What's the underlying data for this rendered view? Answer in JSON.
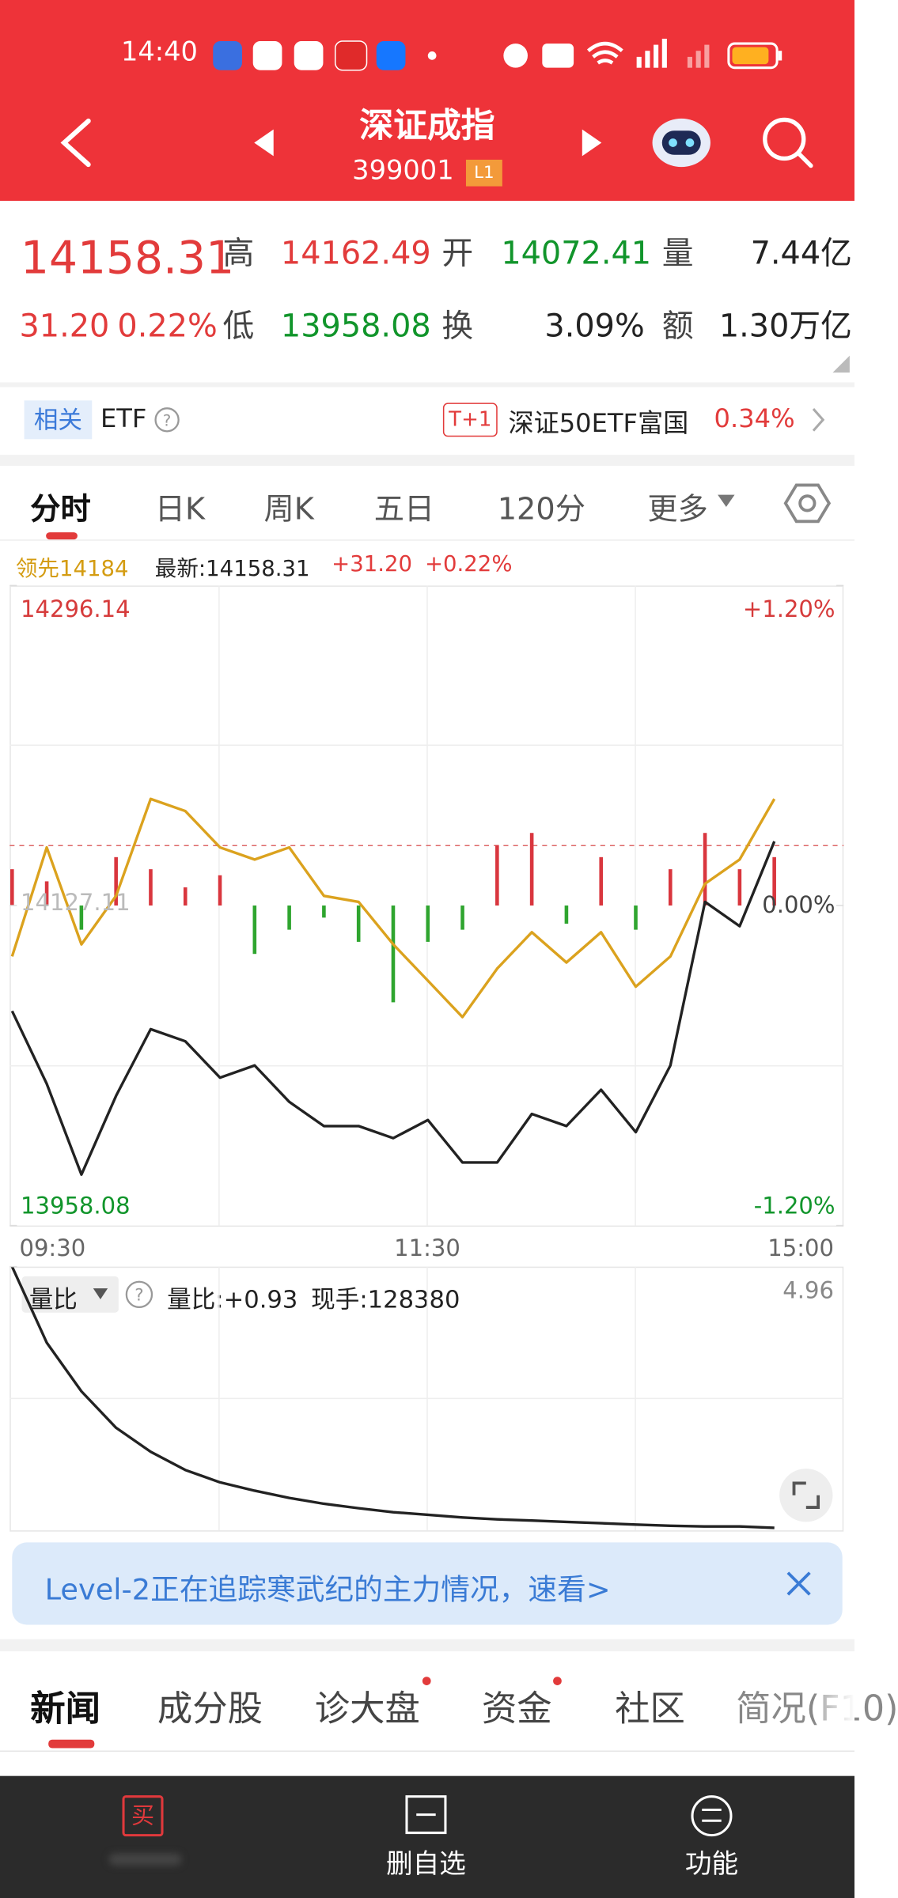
{
  "status_bar": {
    "time": "14:40"
  },
  "header": {
    "title": "深证成指",
    "code": "399001",
    "level": "L1"
  },
  "quote": {
    "price": "14158.31",
    "change": "31.20",
    "change_pct": "0.22%",
    "high_label": "高",
    "high": "14162.49",
    "open_label": "开",
    "open": "14072.41",
    "volume_label": "量",
    "volume": "7.44亿",
    "low_label": "低",
    "low": "13958.08",
    "turnover_label": "换",
    "turnover": "3.09%",
    "amount_label": "额",
    "amount": "1.30万亿"
  },
  "etf": {
    "tag": "相关",
    "label": "ETF",
    "badge": "T+1",
    "name": "深证50ETF富国",
    "change": "0.34%"
  },
  "tabs": [
    "分时",
    "日K",
    "周K",
    "五日",
    "120分",
    "更多"
  ],
  "chart_data": [
    {
      "type": "line",
      "legend": {
        "leader": "领先14184",
        "latest": "最新:14158.31",
        "change": "+31.20",
        "change_pct": "+0.22%"
      },
      "xticks": [
        "09:30",
        "11:30",
        "15:00"
      ],
      "ylim": [
        13958.08,
        14296.14
      ],
      "yticks": [
        13958.08,
        14127.11,
        14296.14
      ],
      "y2lim": [
        -1.2,
        1.2
      ],
      "y2ticks": [
        {
          "value": -1.2,
          "label": "-1.20%"
        },
        {
          "value": 0,
          "label": "0.00%"
        },
        {
          "value": 1.2,
          "label": "+1.20%"
        }
      ],
      "series": [
        {
          "color": "#222222",
          "values": [
            14071.4,
            14033.0,
            13985.0,
            14026.6,
            14061.8,
            14055.4,
            14036.2,
            14042.6,
            14023.4,
            14010.6,
            14010.6,
            14004.2,
            14013.8,
            13991.4,
            13991.4,
            14017.0,
            14010.6,
            14029.8,
            14007.4,
            14042.6,
            14129.0,
            14116.2,
            14161.0
          ]
        },
        {
          "color": "#dba21e",
          "values": [
            14100.2,
            14157.8,
            14106.6,
            14132.2,
            14183.4,
            14177.0,
            14157.8,
            14151.4,
            14157.8,
            14132.2,
            14129.0,
            14106.6,
            14087.4,
            14068.2,
            14093.8,
            14113.0,
            14097.0,
            14113.0,
            14084.2,
            14100.2,
            14138.6,
            14151.4,
            14183.4
          ]
        }
      ],
      "bars": {
        "up_color": "#d9363e",
        "down_color": "#2fa52f",
        "values": [
          30,
          20,
          -20,
          40,
          30,
          15,
          25,
          -40,
          -20,
          -10,
          -30,
          -80,
          -30,
          -20,
          50,
          60,
          -15,
          40,
          -20,
          30,
          60,
          30,
          40
        ]
      }
    },
    {
      "type": "line",
      "title": "量比",
      "ratio": "量比:+0.93",
      "hand": "现手:128380",
      "ylim": [
        0.9,
        4.96
      ],
      "yticks": [
        4.96
      ],
      "series": [
        {
          "color": "#222222",
          "values": [
            4.96,
            3.79,
            3.04,
            2.48,
            2.11,
            1.83,
            1.64,
            1.51,
            1.4,
            1.31,
            1.24,
            1.18,
            1.14,
            1.1,
            1.07,
            1.05,
            1.03,
            1.01,
            0.99,
            0.97,
            0.96,
            0.96,
            0.94
          ]
        }
      ]
    }
  ],
  "banner": {
    "text": "Level-2正在追踪寒武纪的主力情况，速看>"
  },
  "news_tabs": [
    "新闻",
    "成分股",
    "诊大盘",
    "资金",
    "社区",
    "简况(F10)"
  ],
  "bottom_nav": {
    "buy": "买",
    "watch": "删自选",
    "functions": "功能"
  }
}
